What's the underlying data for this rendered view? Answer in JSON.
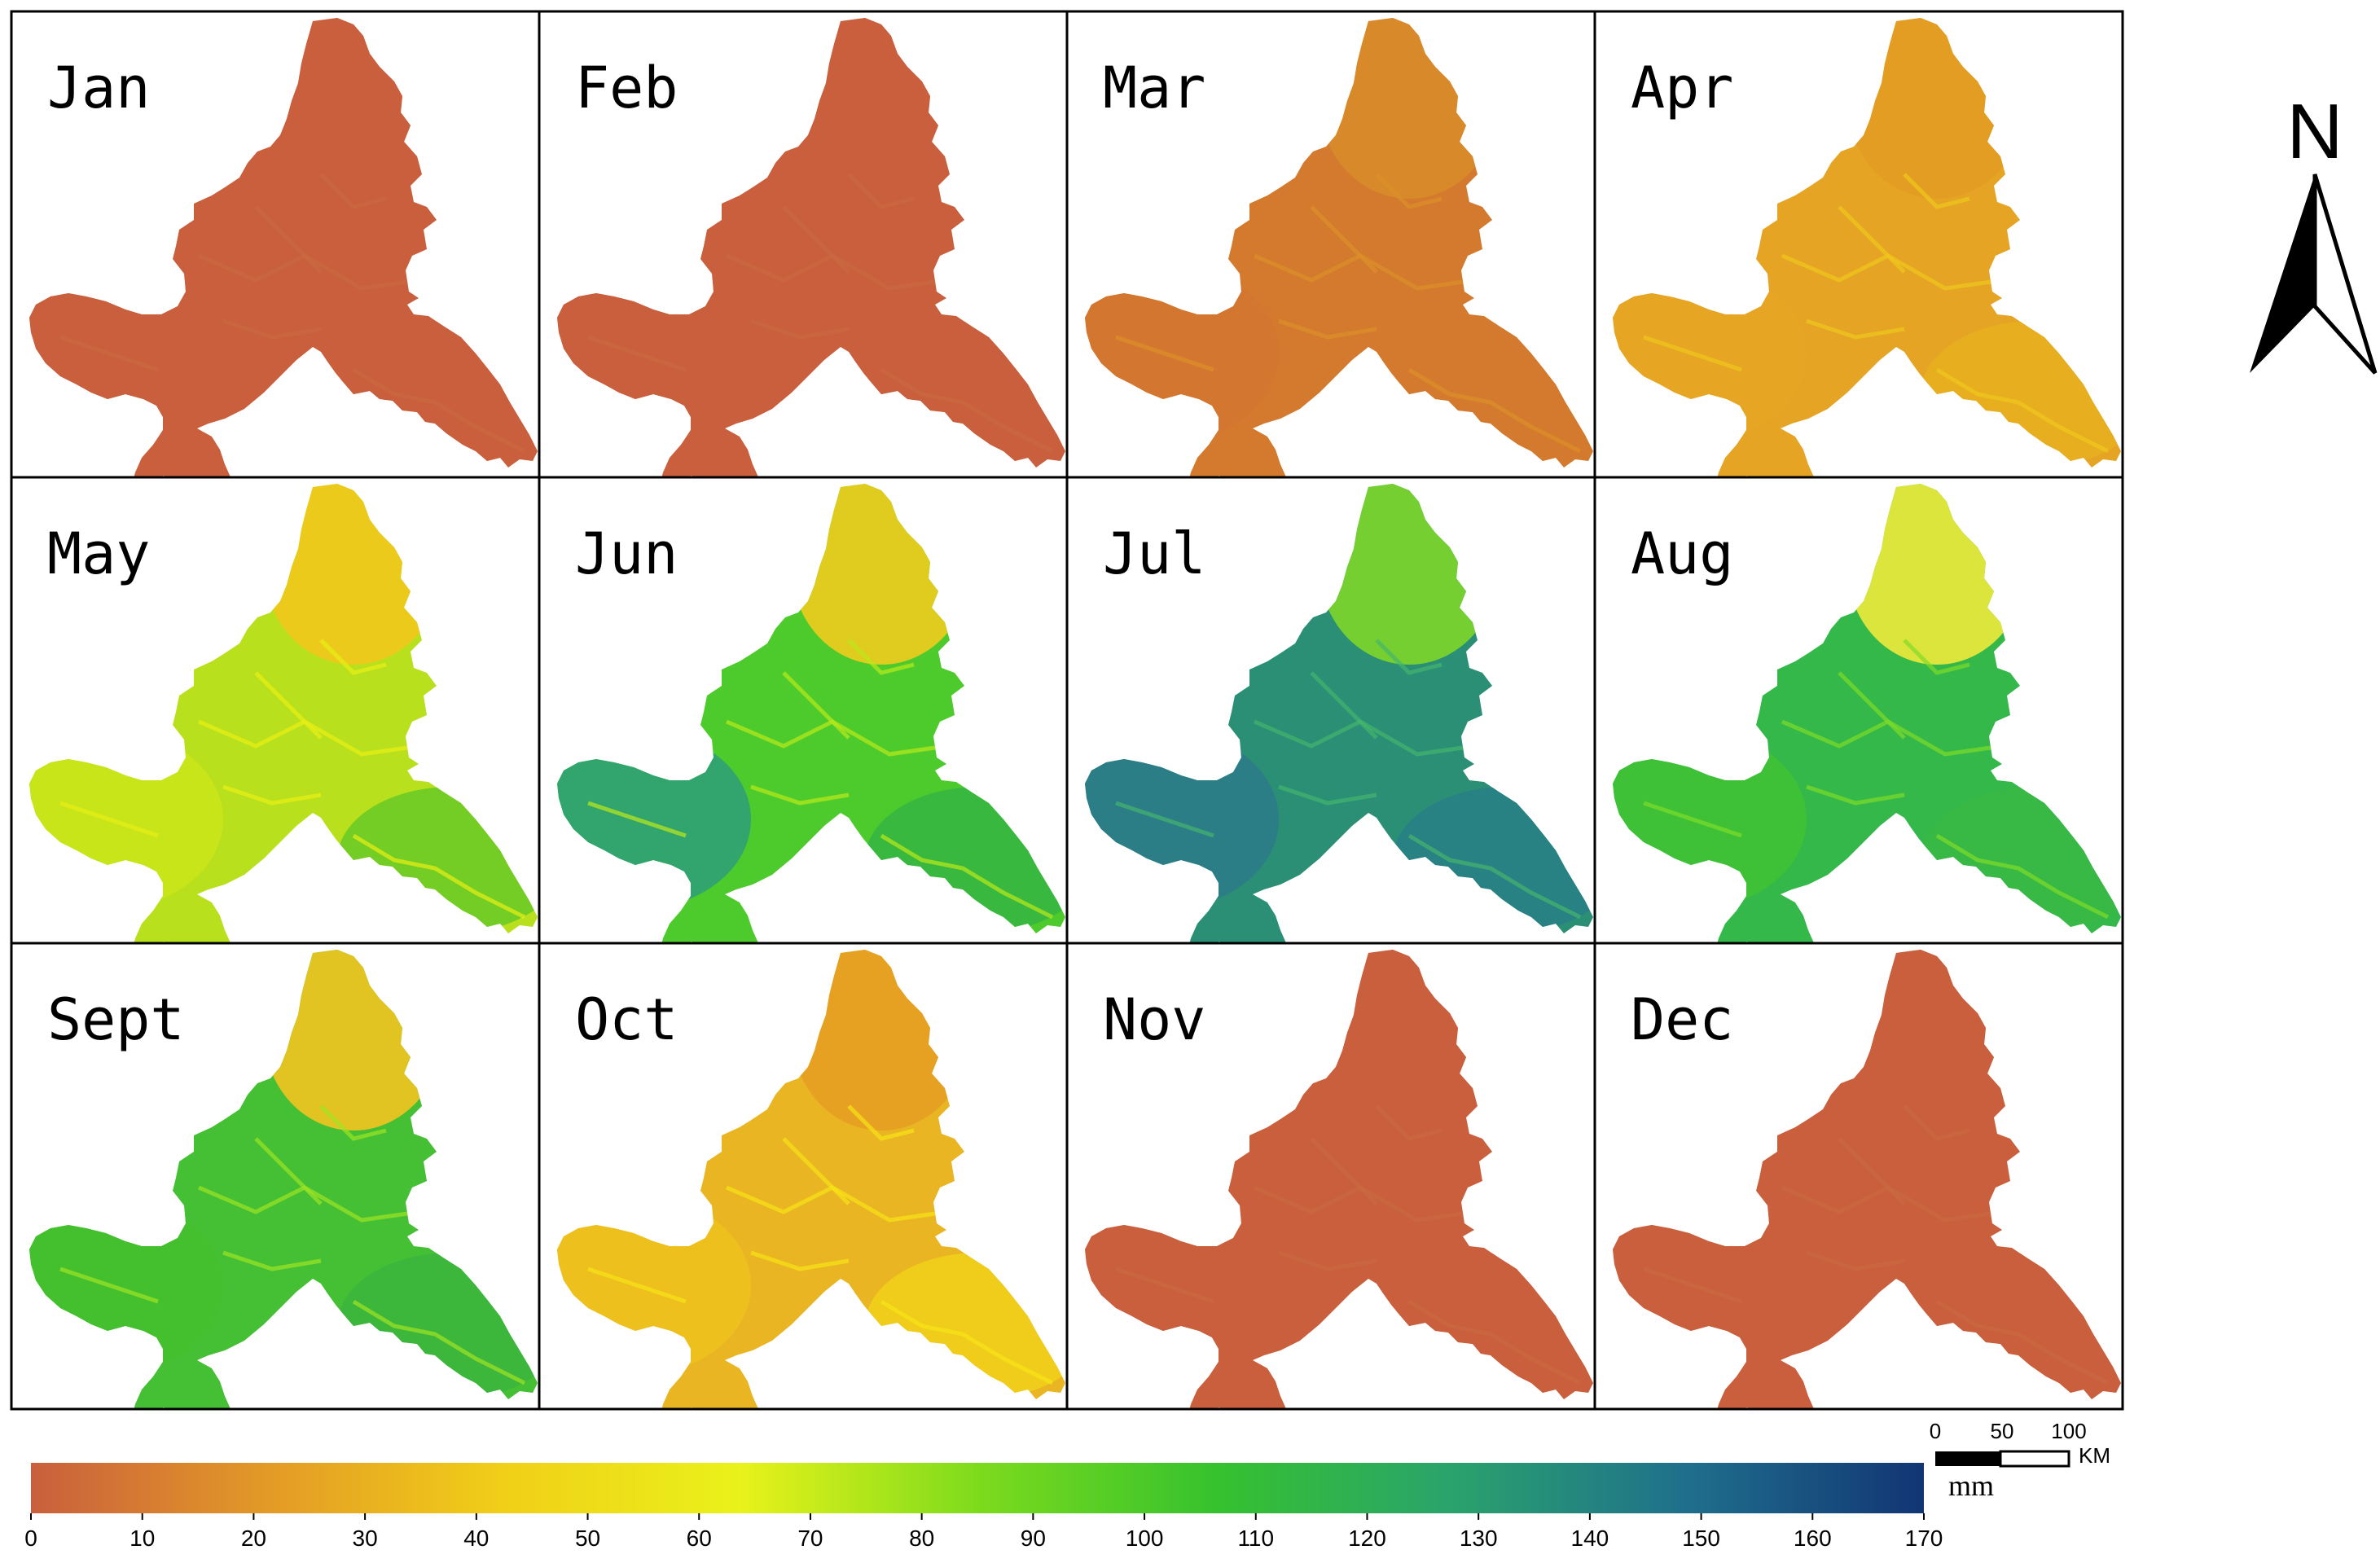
{
  "panels": [
    {
      "month": "Jan",
      "colors": {
        "main": "#c95f3d",
        "north": "#c95f3d",
        "west": "#c95f3d",
        "east": "#c95f3d",
        "rivers": "#c96a42"
      }
    },
    {
      "month": "Feb",
      "colors": {
        "main": "#c95f3d",
        "north": "#c95f3d",
        "west": "#c95f3d",
        "east": "#c95f3d",
        "rivers": "#c96a42"
      }
    },
    {
      "month": "Mar",
      "colors": {
        "main": "#d37a2e",
        "north": "#d88b2a",
        "west": "#d27630",
        "east": "#d47a2e",
        "rivers": "#dc9028"
      }
    },
    {
      "month": "Apr",
      "colors": {
        "main": "#e5a423",
        "north": "#e39c24",
        "west": "#e6a723",
        "east": "#e8b01f",
        "rivers": "#f0c81c"
      }
    },
    {
      "month": "May",
      "colors": {
        "main": "#b9e01d",
        "north": "#f2c81d",
        "west": "#c9e519",
        "east": "#66c926",
        "rivers": "#e8f014"
      }
    },
    {
      "month": "Jun",
      "colors": {
        "main": "#4ecb2c",
        "north": "#f0cc1e",
        "west": "#2e9d7a",
        "east": "#35b543",
        "rivers": "#b9e81a"
      }
    },
    {
      "month": "Jul",
      "colors": {
        "main": "#2b8f76",
        "north": "#7dd62a",
        "west": "#2c7a8a",
        "east": "#287f86",
        "rivers": "#44b56c"
      }
    },
    {
      "month": "Aug",
      "colors": {
        "main": "#35b84a",
        "north": "#eeea3a",
        "west": "#3fc234",
        "east": "#38b744",
        "rivers": "#7fdc28"
      }
    },
    {
      "month": "Sept",
      "colors": {
        "main": "#45bf34",
        "north": "#f2c320",
        "west": "#44c02f",
        "east": "#3bb43d",
        "rivers": "#9ee422"
      }
    },
    {
      "month": "Oct",
      "colors": {
        "main": "#eab522",
        "north": "#e59e24",
        "west": "#efc21d",
        "east": "#f1d01a",
        "rivers": "#f7e416"
      }
    },
    {
      "month": "Nov",
      "colors": {
        "main": "#c95f3d",
        "north": "#c95f3d",
        "west": "#c95f3d",
        "east": "#c95f3d",
        "rivers": "#c96a42"
      }
    },
    {
      "month": "Dec",
      "colors": {
        "main": "#c95f3d",
        "north": "#c95f3d",
        "west": "#c95f3d",
        "east": "#c95f3d",
        "rivers": "#c96a42"
      }
    }
  ],
  "colorbar": {
    "ticks": [
      "0",
      "10",
      "20",
      "30",
      "40",
      "50",
      "60",
      "70",
      "80",
      "90",
      "100",
      "110",
      "120",
      "130",
      "140",
      "150",
      "160",
      "170"
    ],
    "min": 0,
    "max": 170,
    "unit": "mm",
    "gradient": [
      "#c95f3d",
      "#e39a26",
      "#f1cf18",
      "#e9f21a",
      "#7ddb1c",
      "#36c22e",
      "#2aa36c",
      "#1f6f8c",
      "#123574"
    ]
  },
  "scalebar": {
    "labels": [
      "0",
      "50",
      "100"
    ],
    "unit": "KM"
  },
  "north_arrow": {
    "label": "N",
    "icon": "north-arrow-icon"
  },
  "colors": {
    "frame": "#000000",
    "background": "#ffffff"
  }
}
